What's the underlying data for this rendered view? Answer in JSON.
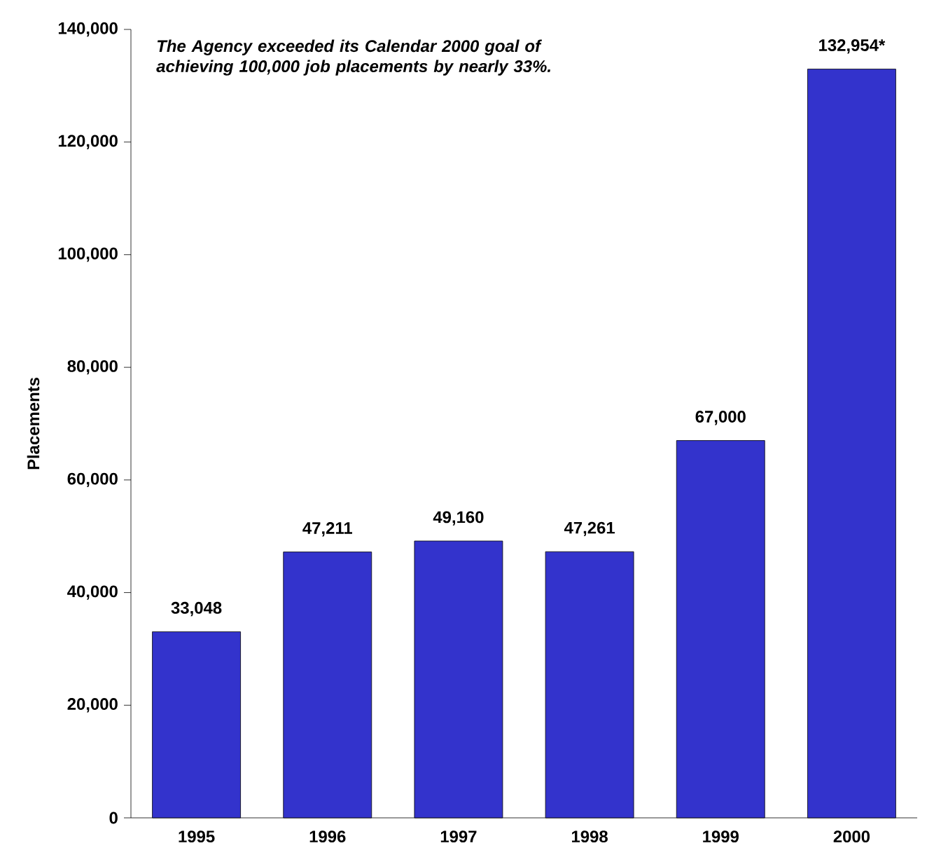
{
  "chart_data": {
    "type": "bar",
    "ylabel": "Placements",
    "categories": [
      "1995",
      "1996",
      "1997",
      "1998",
      "1999",
      "2000"
    ],
    "values": [
      33048,
      47211,
      49160,
      47261,
      67000,
      132954
    ],
    "value_labels": [
      "33,048",
      "47,211",
      "49,160",
      "47,261",
      "67,000",
      "132,954*"
    ],
    "color": "#3333cc",
    "ylim": [
      0,
      140000
    ],
    "yticks": [
      {
        "value": 0,
        "label": "0"
      },
      {
        "value": 20000,
        "label": "20,000"
      },
      {
        "value": 40000,
        "label": "40,000"
      },
      {
        "value": 60000,
        "label": "60,000"
      },
      {
        "value": 80000,
        "label": "80,000"
      },
      {
        "value": 100000,
        "label": "100,000"
      },
      {
        "value": 120000,
        "label": "120,000"
      },
      {
        "value": 140000,
        "label": "140,000"
      }
    ],
    "annotations": [
      "The Agency exceeded its Calendar 2000 goal of achieving 100,000 job placements by nearly 33%."
    ]
  }
}
